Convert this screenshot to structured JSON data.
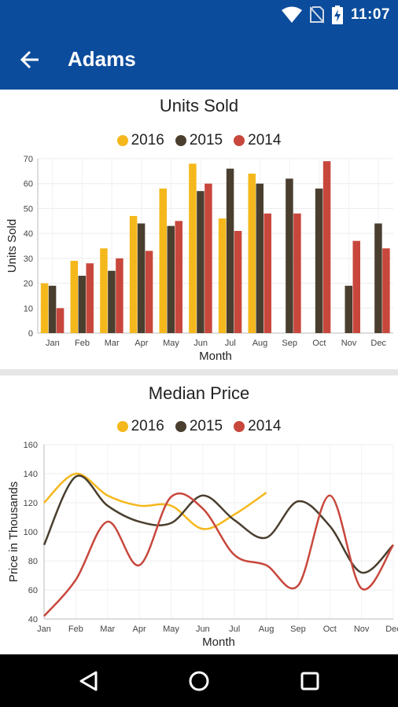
{
  "status_bar": {
    "time": "11:07",
    "icons": [
      "wifi-icon",
      "no-sim-icon",
      "battery-charging-icon"
    ]
  },
  "app_bar": {
    "title": "Adams",
    "back_icon": "arrow-back-icon",
    "color": "#0b4c9c"
  },
  "colors": {
    "2016": "#f5b81c",
    "2015": "#4a3f2f",
    "2014": "#c8473c"
  },
  "chart_data": [
    {
      "type": "bar",
      "title": "Units Sold",
      "xlabel": "Month",
      "ylabel": "Units Sold",
      "ylim": [
        0,
        70
      ],
      "yticks": [
        0,
        10,
        20,
        30,
        40,
        50,
        60,
        70
      ],
      "categories": [
        "Jan",
        "Feb",
        "Mar",
        "Apr",
        "May",
        "Jun",
        "Jul",
        "Aug",
        "Sep",
        "Oct",
        "Nov",
        "Dec"
      ],
      "legend": "top-center",
      "grid": true,
      "series": [
        {
          "name": "2016",
          "values": [
            20,
            29,
            34,
            47,
            58,
            68,
            46,
            64,
            null,
            null,
            null,
            null
          ]
        },
        {
          "name": "2015",
          "values": [
            19,
            23,
            25,
            44,
            43,
            57,
            66,
            60,
            62,
            58,
            19,
            44
          ]
        },
        {
          "name": "2014",
          "values": [
            10,
            28,
            30,
            33,
            45,
            60,
            41,
            48,
            48,
            69,
            37,
            34
          ]
        }
      ]
    },
    {
      "type": "line",
      "title": "Median Price",
      "xlabel": "Month",
      "ylabel": "Price in Thousands",
      "ylim": [
        40,
        160
      ],
      "yticks": [
        40,
        60,
        80,
        100,
        120,
        140,
        160
      ],
      "categories": [
        "Jan",
        "Feb",
        "Mar",
        "Apr",
        "May",
        "Jun",
        "Jul",
        "Aug",
        "Sep",
        "Oct",
        "Nov",
        "Dec"
      ],
      "legend": "top-center",
      "grid": true,
      "series": [
        {
          "name": "2016",
          "values": [
            120,
            140,
            125,
            118,
            118,
            102,
            112,
            127,
            null,
            null,
            null,
            null
          ]
        },
        {
          "name": "2015",
          "values": [
            91,
            138,
            118,
            107,
            106,
            125,
            108,
            96,
            121,
            104,
            72,
            91
          ]
        },
        {
          "name": "2014",
          "values": [
            42,
            67,
            107,
            77,
            124,
            116,
            84,
            77,
            63,
            125,
            61,
            91
          ]
        }
      ]
    }
  ],
  "nav_bar": {
    "buttons": [
      "back-triangle-icon",
      "home-circle-icon",
      "recents-square-icon"
    ]
  }
}
